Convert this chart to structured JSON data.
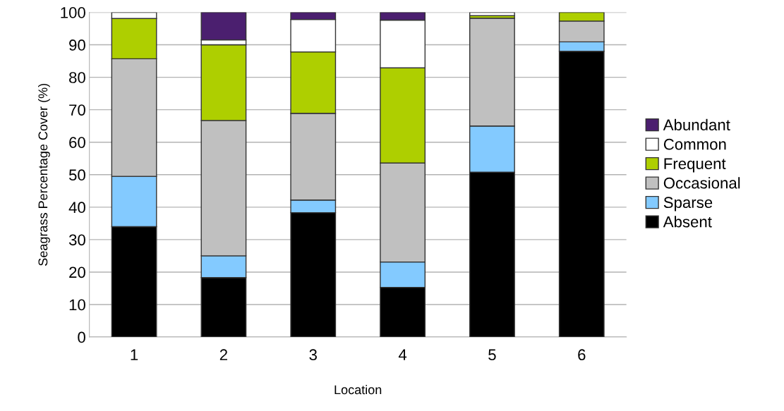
{
  "chart_data": {
    "type": "bar",
    "stacked": true,
    "xlabel": "Location",
    "ylabel": "Seagrass Percentage Cover (%)",
    "categories": [
      "1",
      "2",
      "3",
      "4",
      "5",
      "6"
    ],
    "series": [
      {
        "name": "Absent",
        "color": "#000000",
        "values": [
          34,
          18.3,
          38.3,
          15.3,
          50.8,
          88
        ]
      },
      {
        "name": "Sparse",
        "color": "#83caff",
        "values": [
          15.5,
          6.7,
          3.9,
          7.8,
          14.2,
          2.9
        ]
      },
      {
        "name": "Occasional",
        "color": "#c0c0c0",
        "values": [
          36.2,
          41.7,
          26.7,
          30.5,
          33.2,
          6.4
        ]
      },
      {
        "name": "Frequent",
        "color": "#aecf00",
        "values": [
          12.4,
          23.3,
          18.9,
          29.3,
          0.8,
          2.7
        ]
      },
      {
        "name": "Common",
        "color": "#ffffff",
        "values": [
          1.9,
          1.5,
          10,
          14.7,
          1,
          0
        ]
      },
      {
        "name": "Abundant",
        "color": "#4b1f6f",
        "values": [
          0,
          8.5,
          2.2,
          2.4,
          0,
          0
        ]
      }
    ],
    "ylim": [
      0,
      100
    ],
    "yticks": [
      0,
      10,
      20,
      30,
      40,
      50,
      60,
      70,
      80,
      90,
      100
    ],
    "grid": "y",
    "legend": "right"
  }
}
